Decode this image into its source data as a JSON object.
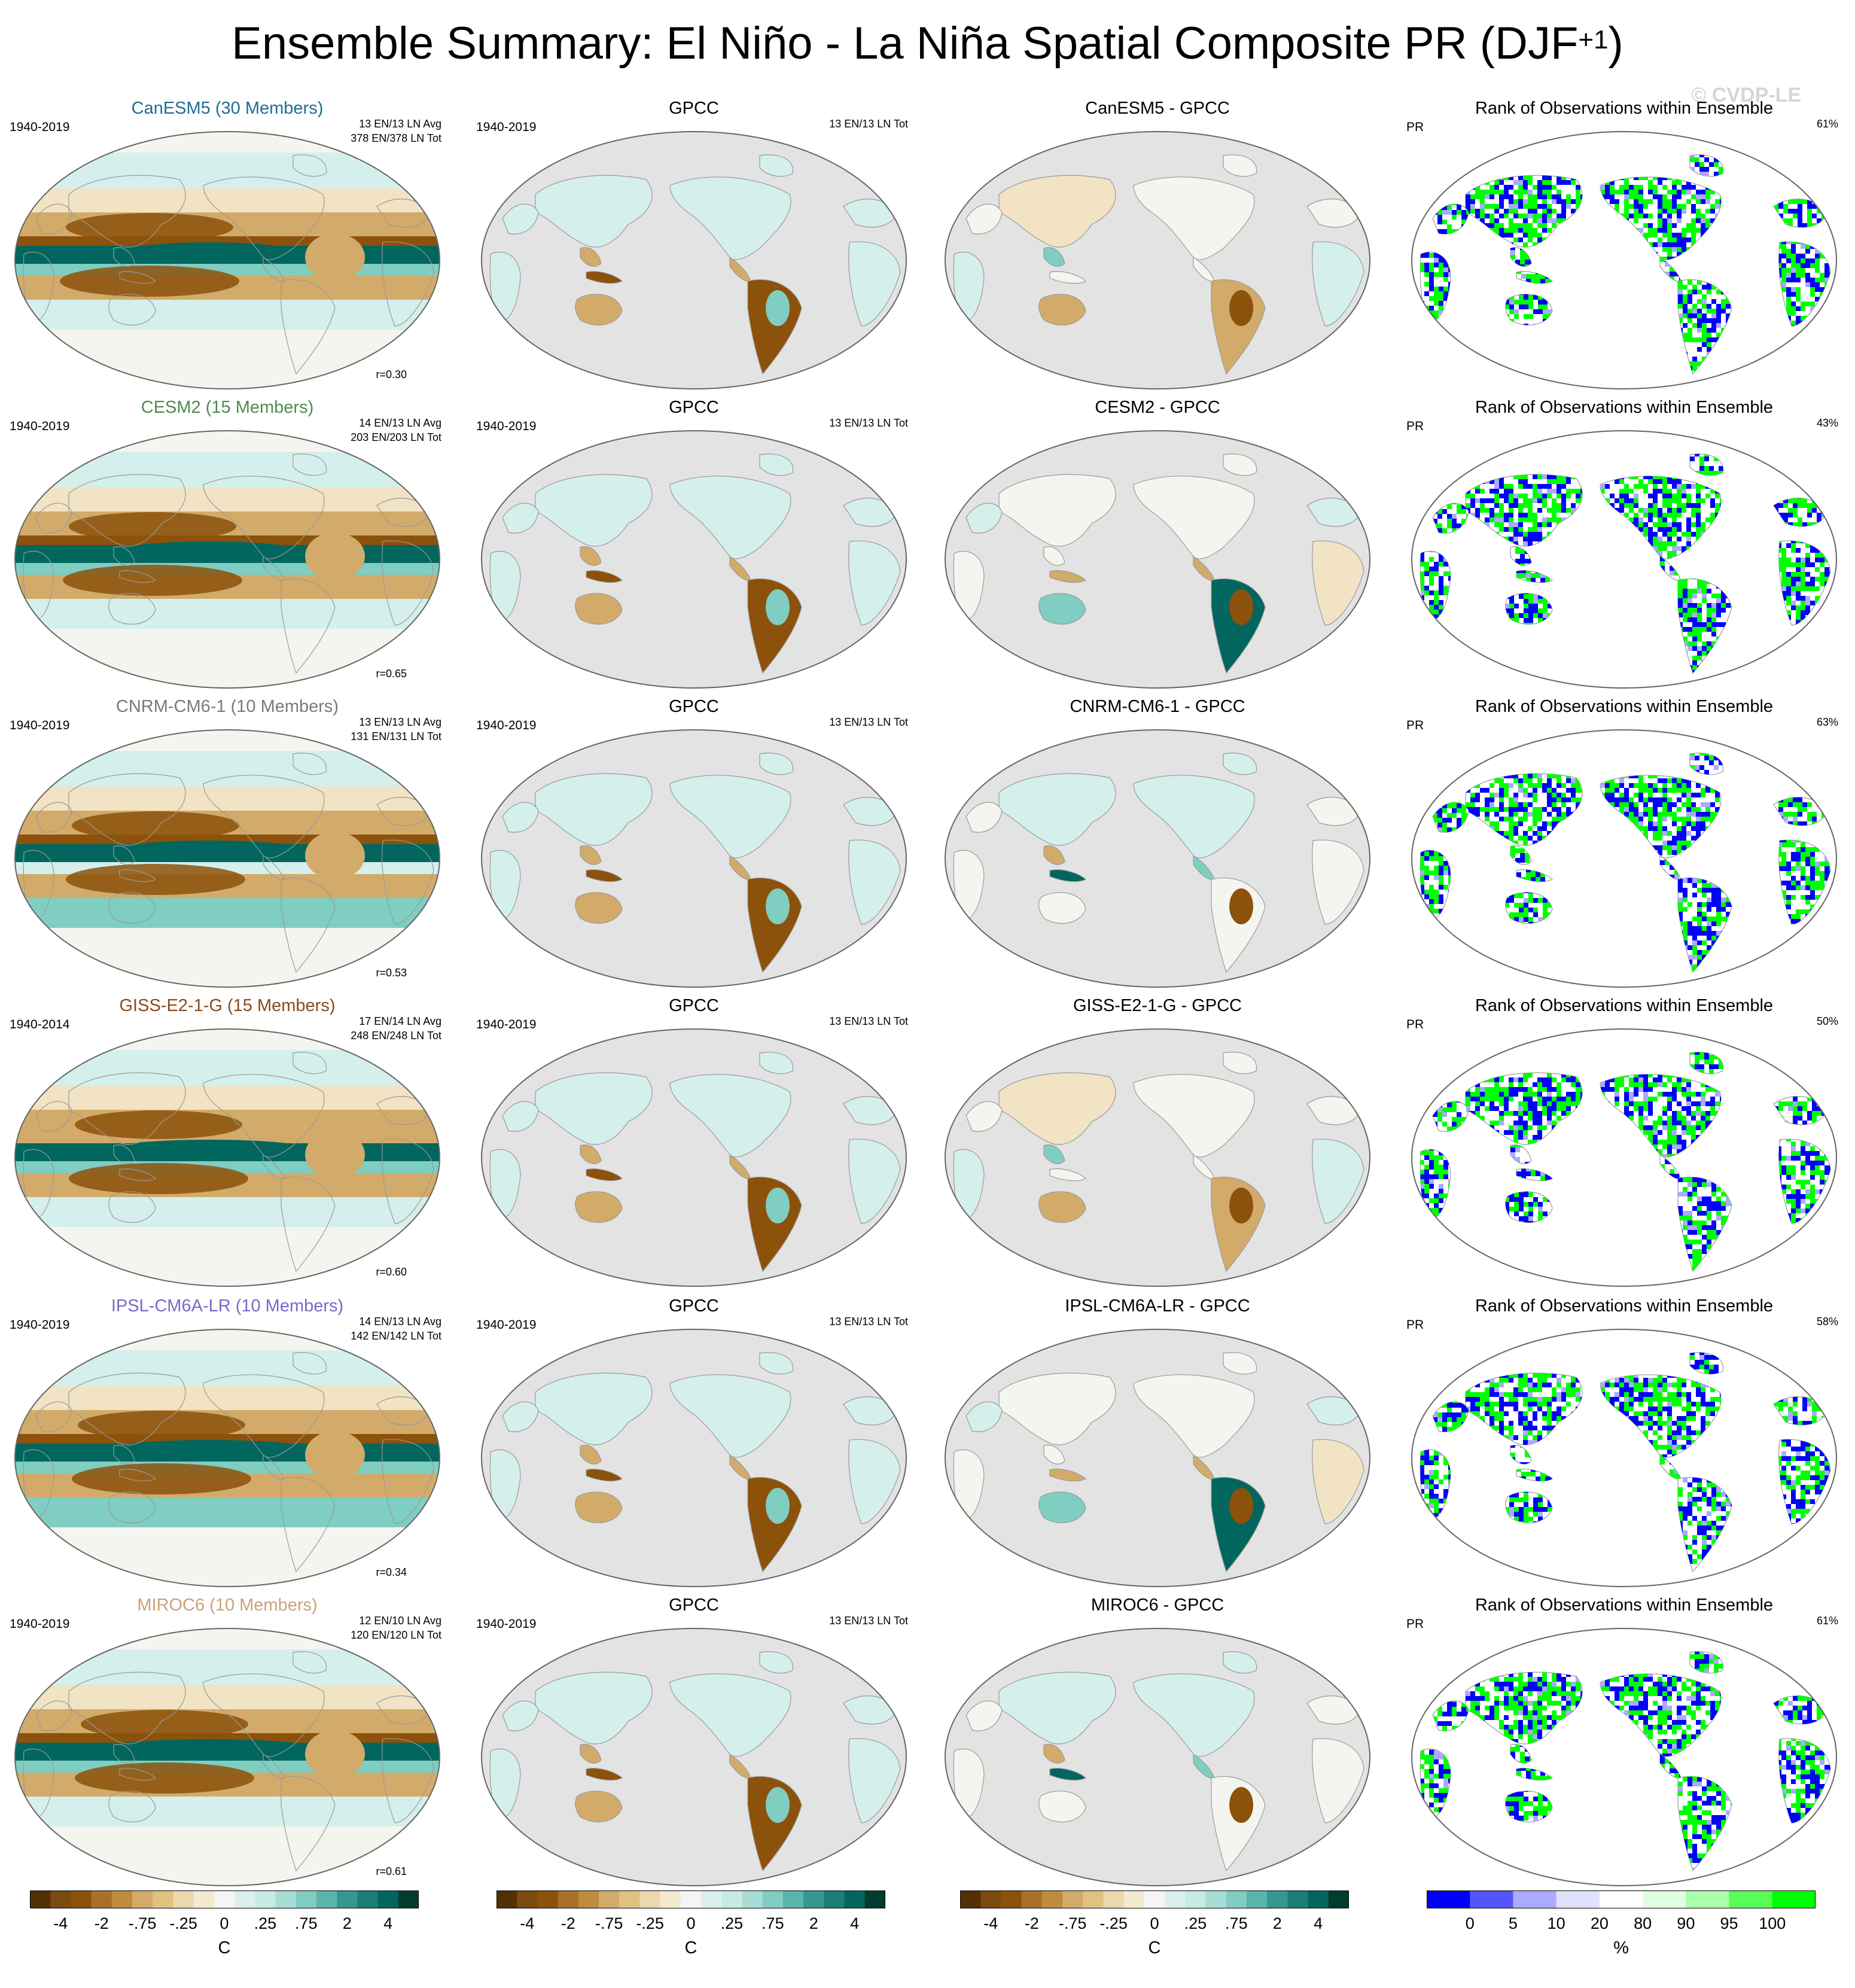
{
  "title": {
    "main": "Ensemble Summary: El Niño - La Niña Spatial Composite PR (DJF",
    "sup": "+1",
    "close": ")"
  },
  "watermark": "© CVDP-LE",
  "gpcc_title": "GPCC",
  "rank_title": "Rank of Observations within Ensemble",
  "rank_left": "PR",
  "gpcc_right": "13 EN/13 LN Tot",
  "rows": [
    {
      "model_title": "CanESM5 (30 Members)",
      "model_color": "#1a6f8f",
      "period": "1940-2019",
      "right_line1": "13 EN/13 LN Avg",
      "right_line2": "378 EN/378 LN Tot",
      "corr": "r=0.30",
      "gpcc_period": "1940-2019",
      "diff_title": "CanESM5 - GPCC",
      "rank_pct": "61%"
    },
    {
      "model_title": "CESM2 (15 Members)",
      "model_color": "#4f8a4f",
      "period": "1940-2019",
      "right_line1": "14 EN/13 LN Avg",
      "right_line2": "203 EN/203 LN Tot",
      "corr": "r=0.65",
      "gpcc_period": "1940-2019",
      "diff_title": "CESM2 - GPCC",
      "rank_pct": "43%"
    },
    {
      "model_title": "CNRM-CM6-1 (10 Members)",
      "model_color": "#7a7a7a",
      "period": "1940-2019",
      "right_line1": "13 EN/13 LN Avg",
      "right_line2": "131 EN/131 LN Tot",
      "corr": "r=0.53",
      "gpcc_period": "1940-2019",
      "diff_title": "CNRM-CM6-1 - GPCC",
      "rank_pct": "63%"
    },
    {
      "model_title": "GISS-E2-1-G (15 Members)",
      "model_color": "#8a4a1a",
      "period": "1940-2014",
      "right_line1": "17 EN/14 LN Avg",
      "right_line2": "248 EN/248 LN Tot",
      "corr": "r=0.60",
      "gpcc_period": "1940-2019",
      "diff_title": "GISS-E2-1-G - GPCC",
      "rank_pct": "50%"
    },
    {
      "model_title": "IPSL-CM6A-LR (10 Members)",
      "model_color": "#7b68c8",
      "period": "1940-2019",
      "right_line1": "14 EN/13 LN Avg",
      "right_line2": "142 EN/142 LN Tot",
      "corr": "r=0.34",
      "gpcc_period": "1940-2019",
      "diff_title": "IPSL-CM6A-LR - GPCC",
      "rank_pct": "58%"
    },
    {
      "model_title": "MIROC6 (10 Members)",
      "model_color": "#c9a27a",
      "period": "1940-2019",
      "right_line1": "12 EN/10 LN Avg",
      "right_line2": "120 EN/120 LN Tot",
      "corr": "r=0.61",
      "gpcc_period": "1940-2019",
      "diff_title": "MIROC6 - GPCC",
      "rank_pct": "61%"
    }
  ],
  "colorbars": [
    {
      "unit": "C",
      "ticks": [
        "-4",
        "-2",
        "-.75",
        "-.25",
        "0",
        ".25",
        ".75",
        "2",
        "4"
      ],
      "colors": [
        "#543005",
        "#7a4a0e",
        "#8c510a",
        "#a8702a",
        "#bf8b3c",
        "#d2ab6a",
        "#dfc27d",
        "#ecd9ad",
        "#f4ead2",
        "#f5f5f5",
        "#dcefee",
        "#c7eae5",
        "#a8ddd5",
        "#80cdc1",
        "#5ab4ac",
        "#35978f",
        "#1b7f76",
        "#01665e",
        "#003c30"
      ]
    },
    {
      "unit": "C",
      "ticks": [
        "-4",
        "-2",
        "-.75",
        "-.25",
        "0",
        ".25",
        ".75",
        "2",
        "4"
      ],
      "colors": [
        "#543005",
        "#7a4a0e",
        "#8c510a",
        "#a8702a",
        "#bf8b3c",
        "#d2ab6a",
        "#dfc27d",
        "#ecd9ad",
        "#f4ead2",
        "#f5f5f5",
        "#dcefee",
        "#c7eae5",
        "#a8ddd5",
        "#80cdc1",
        "#5ab4ac",
        "#35978f",
        "#1b7f76",
        "#01665e",
        "#003c30"
      ]
    },
    {
      "unit": "C",
      "ticks": [
        "-4",
        "-2",
        "-.75",
        "-.25",
        "0",
        ".25",
        ".75",
        "2",
        "4"
      ],
      "colors": [
        "#543005",
        "#7a4a0e",
        "#8c510a",
        "#a8702a",
        "#bf8b3c",
        "#d2ab6a",
        "#dfc27d",
        "#ecd9ad",
        "#f4ead2",
        "#f5f5f5",
        "#dcefee",
        "#c7eae5",
        "#a8ddd5",
        "#80cdc1",
        "#5ab4ac",
        "#35978f",
        "#1b7f76",
        "#01665e",
        "#003c30"
      ]
    },
    {
      "unit": "%",
      "ticks": [
        "0",
        "5",
        "10",
        "20",
        "80",
        "90",
        "95",
        "100"
      ],
      "colors": [
        "#0000ff",
        "#5555ff",
        "#aaaaff",
        "#e0e0ff",
        "#ffffff",
        "#e0ffe0",
        "#aaffaa",
        "#55ff55",
        "#00ff00"
      ]
    }
  ],
  "palette": {
    "dry_strong": "#8c510a",
    "dry": "#d2ab6a",
    "dry_light": "#f1e3c4",
    "neutral": "#f5f5f0",
    "wet_light": "#d5efec",
    "wet": "#80cdc1",
    "wet_strong": "#01665e",
    "land_masked": "#e3e3e3",
    "coast": "#9a9a9a",
    "rank_low": "#0000ff",
    "rank_high": "#00ff00",
    "rank_mid_low": "#aaaaff"
  }
}
